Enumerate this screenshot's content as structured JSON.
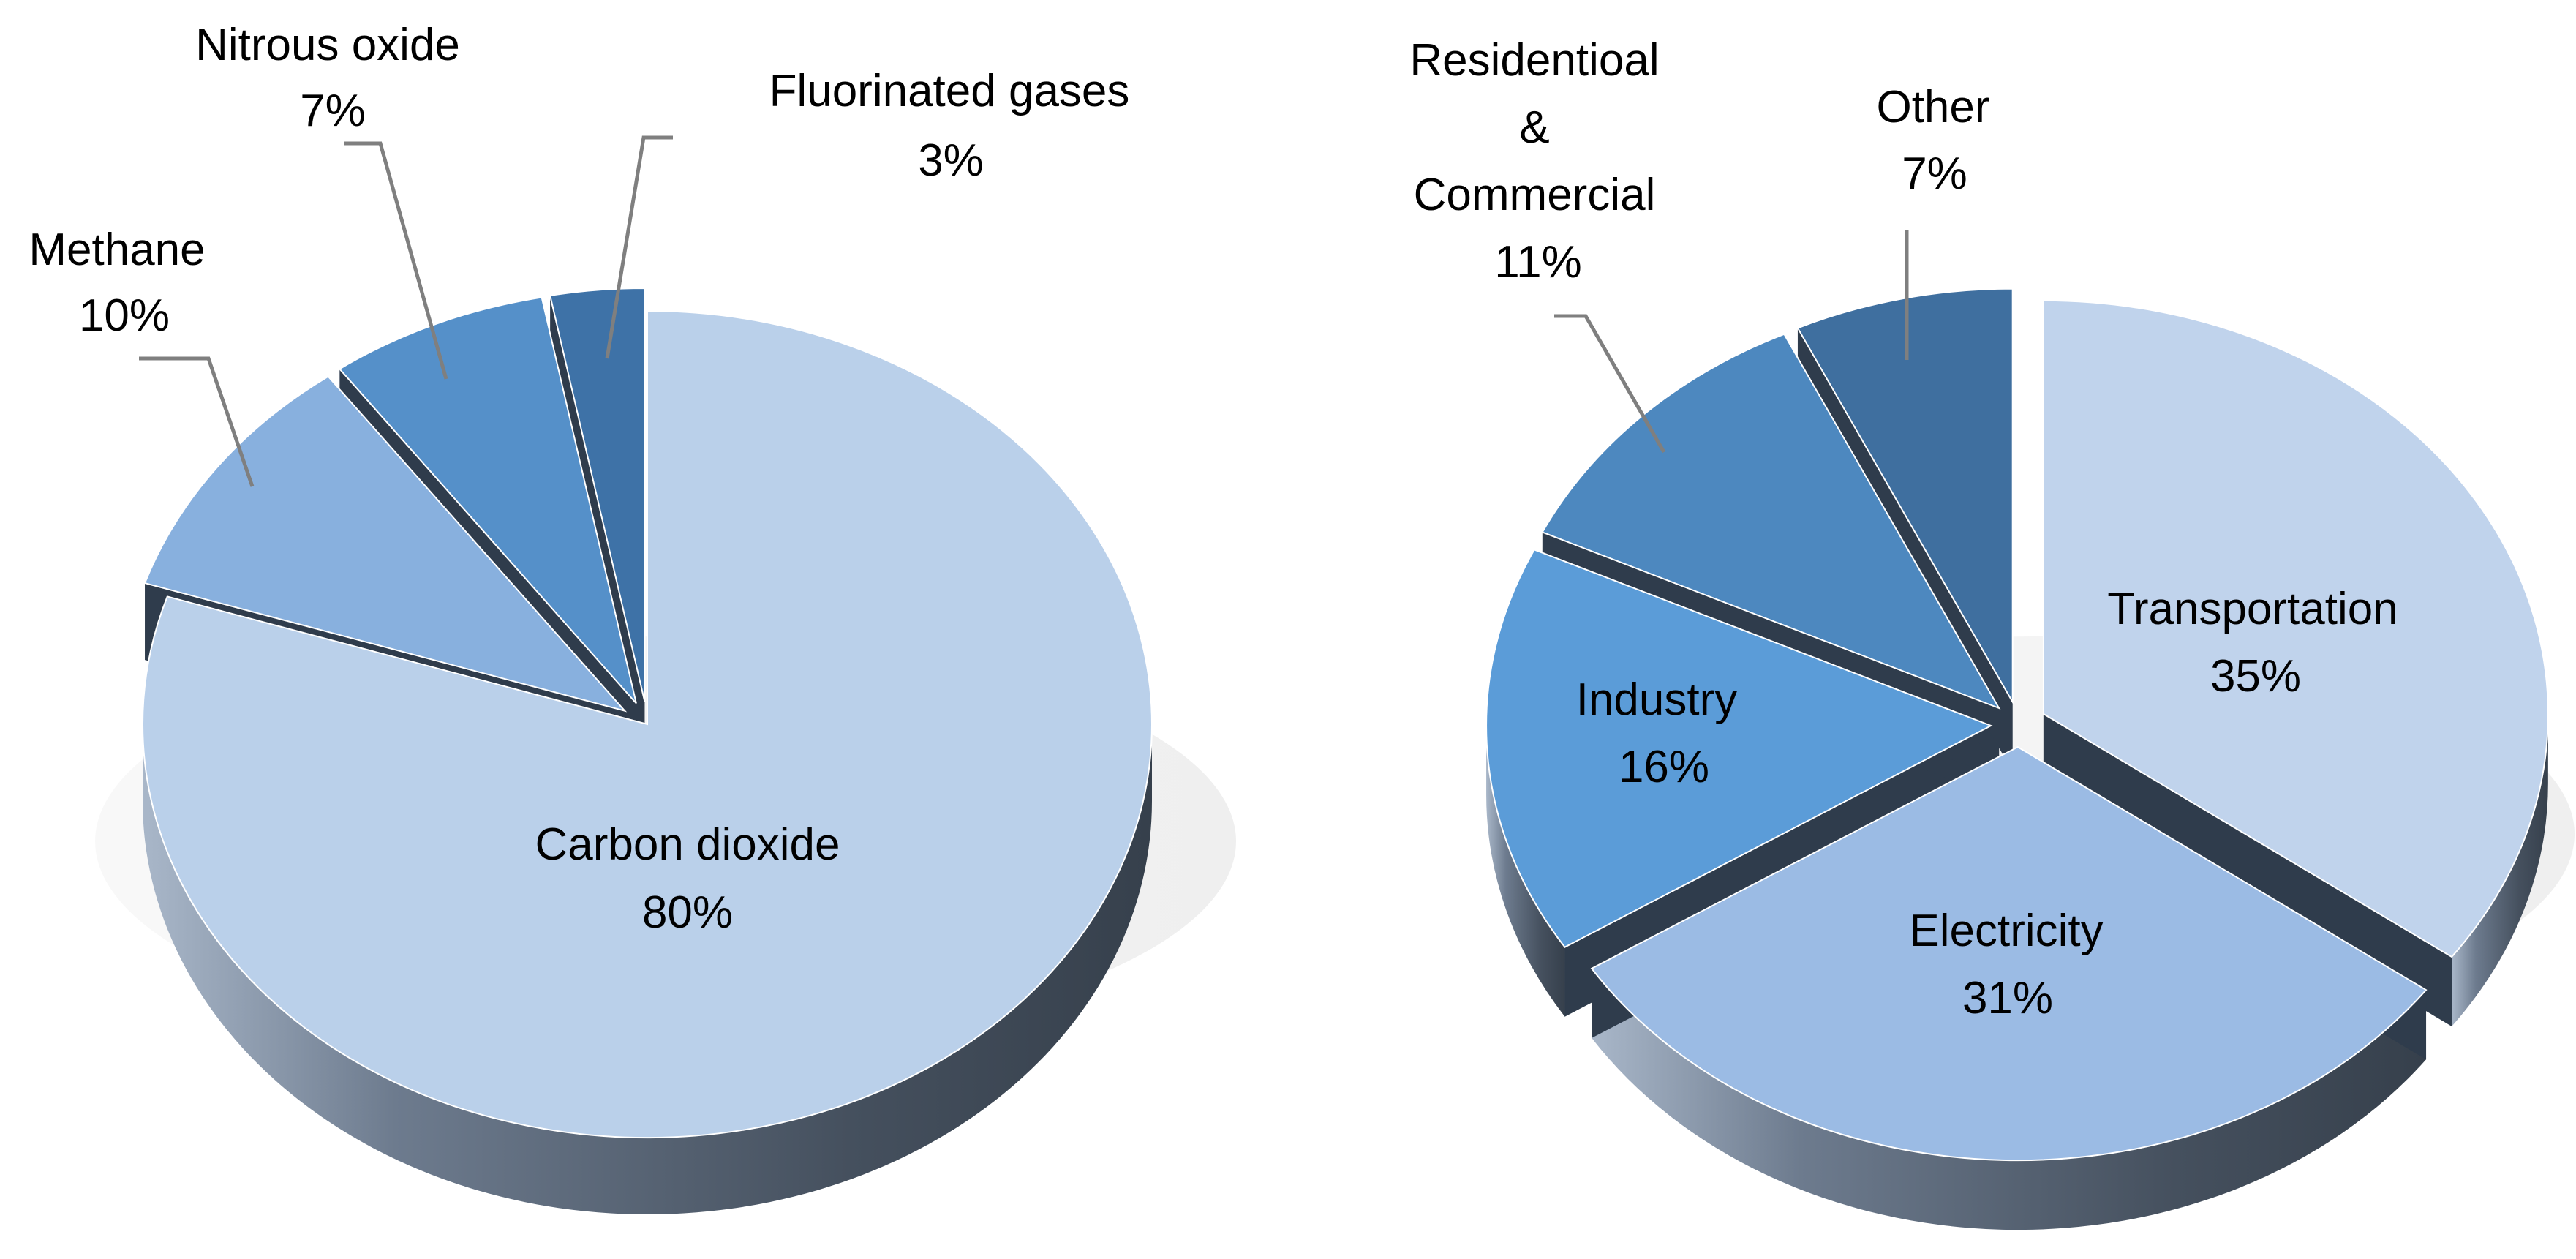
{
  "chart_data": [
    {
      "type": "pie",
      "title": "",
      "slices": [
        {
          "label": "Carbon dioxide",
          "value": 80,
          "value_text": "80%",
          "color": "#bad0ea",
          "exploded": false
        },
        {
          "label": "Methane",
          "value": 10,
          "value_text": "10%",
          "color": "#88b0de",
          "exploded": true
        },
        {
          "label": "Nitrous oxide",
          "value": 7,
          "value_text": "7%",
          "color": "#5590c9",
          "exploded": true
        },
        {
          "label": "Fluorinated gases",
          "value": 3,
          "value_text": "3%",
          "color": "#3e72a7",
          "exploded": true
        }
      ],
      "label_placement": "inside for largest slice, outside with leader lines for the rest",
      "style": "3D"
    },
    {
      "type": "pie",
      "title": "",
      "slices": [
        {
          "label": "Transportation",
          "value": 35,
          "value_text": "35%",
          "color": "#c0d3ec",
          "exploded": true
        },
        {
          "label": "Electricity",
          "value": 31,
          "value_text": "31%",
          "color": "#9bbbe4",
          "exploded": true
        },
        {
          "label": "Industry",
          "value": 16,
          "value_text": "16%",
          "color": "#5b9cd8",
          "exploded": true
        },
        {
          "label": "Residentioal & Commercial",
          "label_lines": [
            "Residentioal",
            "&",
            "Commercial"
          ],
          "value": 11,
          "value_text": "11%",
          "color": "#4d88bf",
          "exploded": true
        },
        {
          "label": "Other",
          "value": 7,
          "value_text": "7%",
          "color": "#3f6f9f",
          "exploded": true
        }
      ],
      "label_placement": "inside for the three largest slices, outside with leader lines for the rest",
      "style": "3D"
    }
  ]
}
